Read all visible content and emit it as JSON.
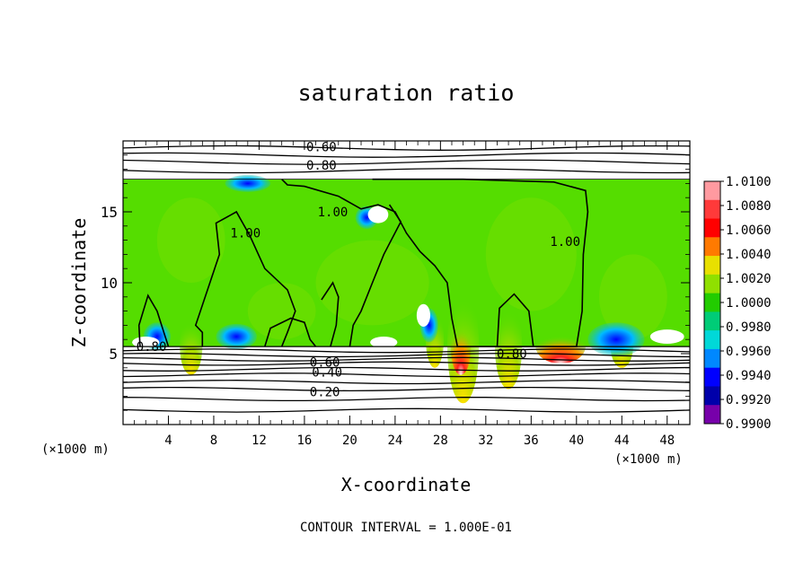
{
  "chart_data": {
    "type": "heatmap",
    "title": "saturation ratio",
    "xlabel": "X-coordinate",
    "ylabel": "Z-coordinate",
    "x_unit_note": "(×1000 m)",
    "y_unit_note": "(×1000 m)",
    "footer": "CONTOUR INTERVAL = 1.000E-01",
    "xlim": [
      0,
      50
    ],
    "ylim": [
      0,
      20
    ],
    "x_ticks": [
      "4",
      "8",
      "12",
      "16",
      "20",
      "24",
      "28",
      "32",
      "36",
      "40",
      "44",
      "48"
    ],
    "y_ticks": [
      "5",
      "10",
      "15"
    ],
    "cloud_layer_z": [
      5.5,
      17.3
    ],
    "colorbar": {
      "levels": [
        "1.0100",
        "1.0080",
        "1.0060",
        "1.0040",
        "1.0020",
        "1.0000",
        "0.9980",
        "0.9960",
        "0.9940",
        "0.9920",
        "0.9900"
      ],
      "colors": [
        "#ff9aa0",
        "#ff3a3a",
        "#ff0000",
        "#ff7a00",
        "#e8e000",
        "#90e000",
        "#22cc00",
        "#00cc77",
        "#00d8d8",
        "#0088ff",
        "#0000ff",
        "#0000aa",
        "#7700aa"
      ]
    },
    "contour_labels": [
      {
        "text": "0.60",
        "x": 17.5,
        "z": 19.6
      },
      {
        "text": "0.80",
        "x": 17.5,
        "z": 18.3
      },
      {
        "text": "1.00",
        "x": 18.5,
        "z": 15.0
      },
      {
        "text": "1.00",
        "x": 10.8,
        "z": 13.5
      },
      {
        "text": "1.00",
        "x": 39.0,
        "z": 12.9
      },
      {
        "text": "0.80",
        "x": 2.5,
        "z": 5.5
      },
      {
        "text": "0.80",
        "x": 34.3,
        "z": 5.0
      },
      {
        "text": "0.60",
        "x": 17.8,
        "z": 4.4
      },
      {
        "text": "0.40",
        "x": 18.0,
        "z": 3.7
      },
      {
        "text": "0.20",
        "x": 17.8,
        "z": 2.3
      }
    ]
  }
}
